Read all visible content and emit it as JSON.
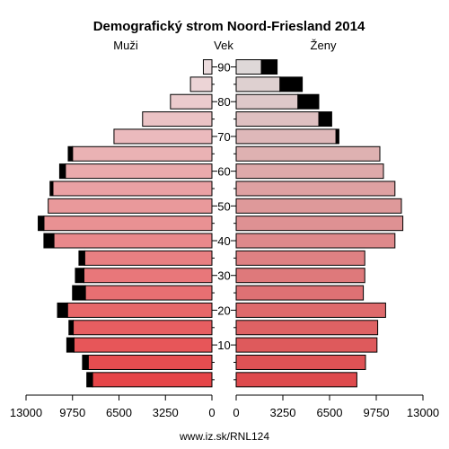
{
  "chart_data": {
    "type": "bar",
    "title": "Demografický strom Noord-Friesland 2014",
    "left_label": "Muži",
    "center_label": "Vek",
    "right_label": "Ženy",
    "footer": "www.iz.sk/RNL124",
    "x_ticks_left": [
      "13000",
      "9750",
      "6500",
      "3250",
      "0"
    ],
    "x_ticks_right": [
      "0",
      "3250",
      "6500",
      "9750",
      "13000"
    ],
    "age_ticks": [
      "90",
      "80",
      "70",
      "60",
      "50",
      "40",
      "30",
      "20",
      "10"
    ],
    "xlim": [
      0,
      13000
    ],
    "age_groups": [
      "0-4",
      "5-9",
      "10-14",
      "15-19",
      "20-24",
      "25-29",
      "30-34",
      "35-39",
      "40-44",
      "45-49",
      "50-54",
      "55-59",
      "60-64",
      "65-69",
      "70-74",
      "75-79",
      "80-84",
      "85-89",
      "90+"
    ],
    "series": [
      {
        "name": "Muži",
        "values": [
          8350,
          8650,
          9650,
          9700,
          10100,
          8850,
          8950,
          8900,
          11050,
          11750,
          11450,
          11120,
          10250,
          9750,
          6850,
          4850,
          2900,
          1500,
          600
        ],
        "excess": [
          400,
          400,
          500,
          300,
          700,
          900,
          600,
          400,
          700,
          400,
          0,
          200,
          400,
          300,
          0,
          0,
          0,
          0,
          0
        ]
      },
      {
        "name": "Ženy",
        "values": [
          8400,
          9000,
          9800,
          9850,
          10400,
          8850,
          8950,
          8950,
          11050,
          11600,
          11500,
          11050,
          10250,
          10000,
          6950,
          5750,
          4300,
          3050,
          1750
        ],
        "excess": [
          0,
          0,
          0,
          0,
          0,
          0,
          0,
          0,
          0,
          0,
          0,
          0,
          0,
          0,
          200,
          900,
          1450,
          1550,
          1100
        ]
      }
    ]
  }
}
